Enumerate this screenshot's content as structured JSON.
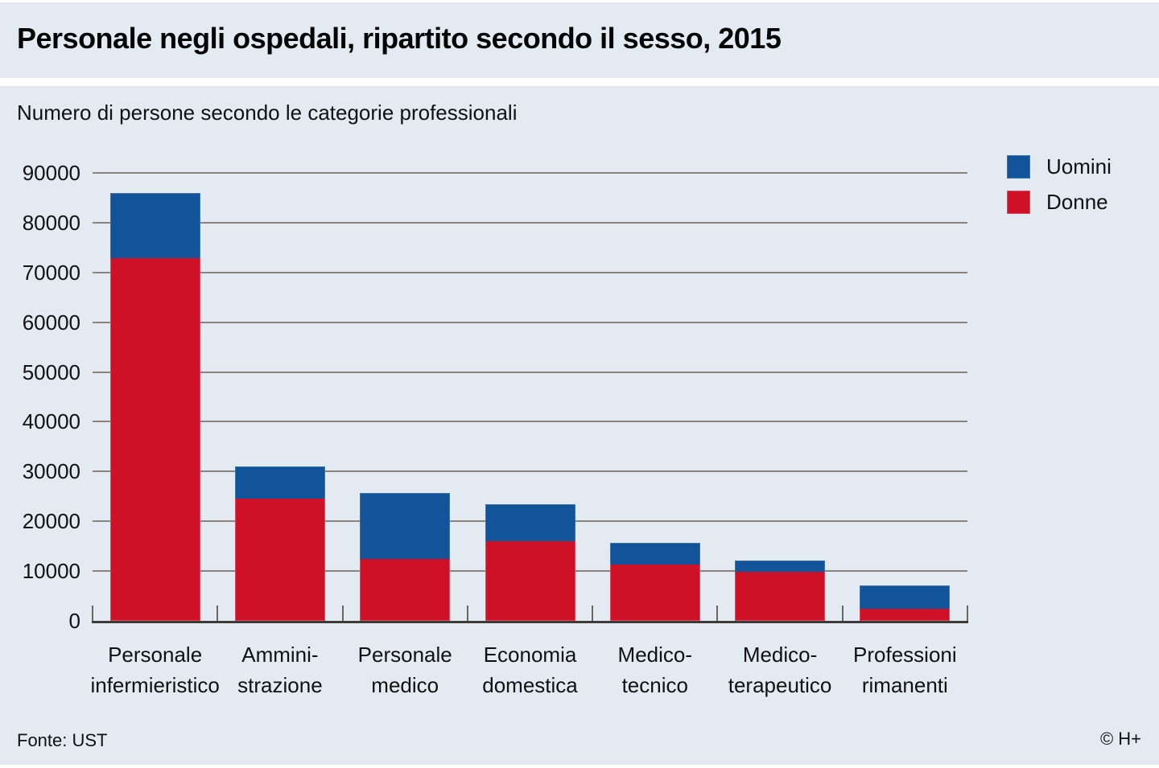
{
  "header": {
    "title": "Personale negli ospedali, ripartito secondo il sesso, 2015"
  },
  "subtitle": "Numero di persone secondo le categorie professionali",
  "legend": {
    "items": [
      {
        "label": "Uomini",
        "color": "#125499"
      },
      {
        "label": "Donne",
        "color": "#ce1126"
      }
    ]
  },
  "footer": {
    "source": "Fonte: UST",
    "copyright": "© H+"
  },
  "colors": {
    "uomini_blue": "#125499",
    "donne_red": "#ce1126",
    "background": "#e3eaf2",
    "gridline": "#8b837d"
  },
  "chart_data": {
    "type": "bar",
    "stacked": true,
    "title": "Personale negli ospedali, ripartito secondo il sesso, 2015",
    "subtitle": "Numero di persone secondo le categorie professionali",
    "categories": [
      [
        "Personale",
        "infermieristico"
      ],
      [
        "Ammini-",
        "strazione"
      ],
      [
        "Personale",
        "medico"
      ],
      [
        "Economia",
        "domestica"
      ],
      [
        "Medico-",
        "tecnico"
      ],
      [
        "Medico-",
        "terapeutico"
      ],
      [
        "Professioni",
        "rimanenti"
      ]
    ],
    "series": [
      {
        "name": "Donne",
        "color": "#ce1126",
        "values": [
          72800,
          24500,
          12500,
          16000,
          11300,
          9800,
          2400
        ]
      },
      {
        "name": "Uomini",
        "color": "#125499",
        "values": [
          13100,
          6500,
          13300,
          7400,
          4300,
          2300,
          4700
        ]
      }
    ],
    "ylim": [
      0,
      90000
    ],
    "ytick_interval": 10000,
    "grid": true,
    "legend_position": "top-right"
  }
}
